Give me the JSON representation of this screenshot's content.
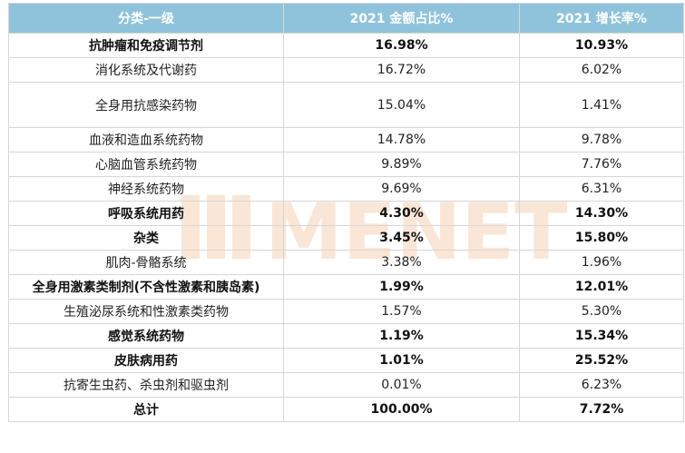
{
  "header": {
    "col1": "分类-一级",
    "col2": "2021 金额占比%",
    "col3": "2021 增长率%"
  },
  "rows": [
    {
      "category": "抗肿瘤和免疫调节剂",
      "share": "16.98%",
      "growth": "10.93%",
      "bold": true
    },
    {
      "category": "消化系统及代谢药",
      "share": "16.72%",
      "growth": "6.02%",
      "bold": false
    },
    {
      "category": "全身用抗感染药物",
      "share": "15.04%",
      "growth": "1.41%",
      "bold": false
    },
    {
      "category": "血液和造血系统药物",
      "share": "14.78%",
      "growth": "9.78%",
      "bold": false
    },
    {
      "category": "心脑血管系统药物",
      "share": "9.89%",
      "growth": "7.76%",
      "bold": false
    },
    {
      "category": "神经系统药物",
      "share": "9.69%",
      "growth": "6.31%",
      "bold": false
    },
    {
      "category": "呼吸系统用药",
      "share": "4.30%",
      "growth": "14.30%",
      "bold": true
    },
    {
      "category": "杂类",
      "share": "3.45%",
      "growth": "15.80%",
      "bold": true
    },
    {
      "category": "肌肉-骨骼系统",
      "share": "3.38%",
      "growth": "1.96%",
      "bold": false
    },
    {
      "category": "全身用激素类制剂(不含性激素和胰岛素)",
      "share": "1.99%",
      "growth": "12.01%",
      "bold": true
    },
    {
      "category": "生殖泌尿系统和性激素类药物",
      "share": "1.57%",
      "growth": "5.30%",
      "bold": false
    },
    {
      "category": "感觉系统药物",
      "share": "1.19%",
      "growth": "15.34%",
      "bold": true
    },
    {
      "category": "皮肤病用药",
      "share": "1.01%",
      "growth": "25.52%",
      "bold": true
    },
    {
      "category": "抗寄生虫药、杀虫剂和驱虫剂",
      "share": "0.01%",
      "growth": "6.23%",
      "bold": false
    },
    {
      "category": "总计",
      "share": "100.00%",
      "growth": "7.72%",
      "bold": true
    }
  ],
  "watermark": {
    "text": "MENET",
    "color": "#f5c9a8"
  }
}
